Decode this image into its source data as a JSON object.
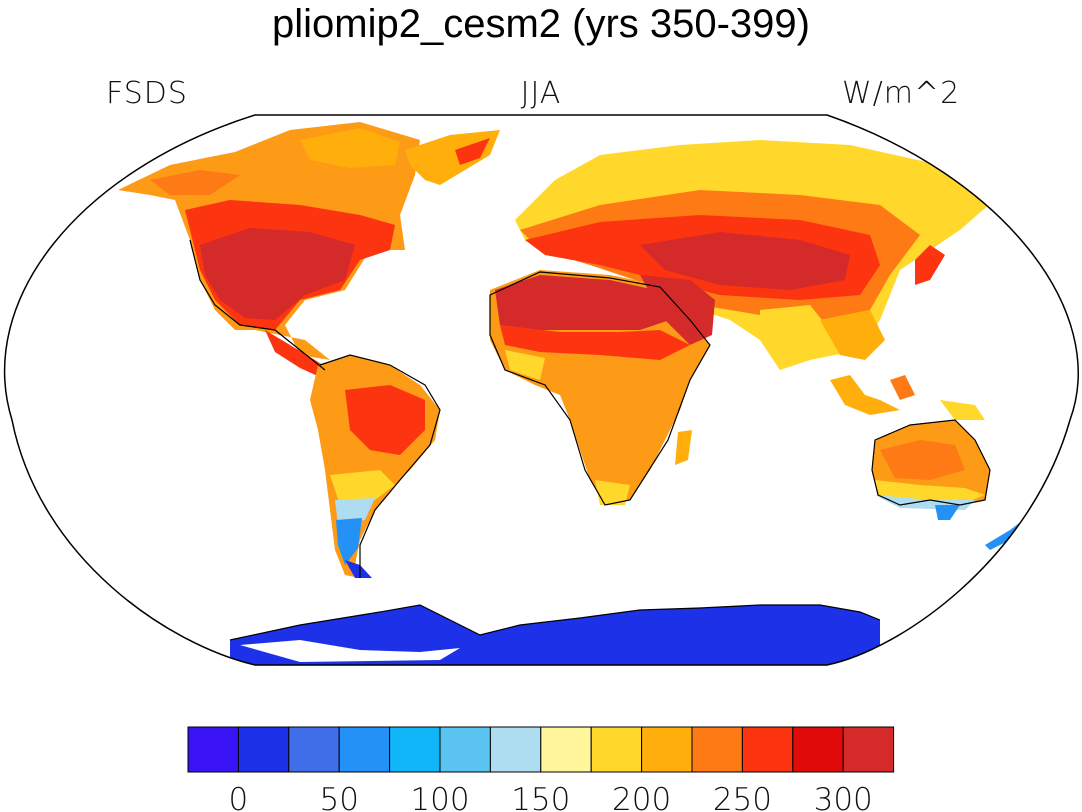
{
  "title": "pliomip2_cesm2 (yrs 350-399)",
  "subtitle": {
    "left": "FSDS",
    "center": "JJA",
    "right": "W/m^2"
  },
  "colorbar": {
    "colors": [
      "#3b14f5",
      "#1d32e8",
      "#3f6ee8",
      "#2391f5",
      "#10b6f8",
      "#5bc3f0",
      "#aedcf0",
      "#fff59a",
      "#ffd82b",
      "#ffae0b",
      "#fd7a14",
      "#fc3410",
      "#e10a0a",
      "#d42a2a"
    ],
    "tick_labels": [
      "0",
      "50",
      "100",
      "150",
      "200",
      "250",
      "300"
    ]
  },
  "map": {
    "projection": "robinson",
    "variable": "FSDS",
    "season": "JJA",
    "units": "W/m^2",
    "ocean_masked": true
  }
}
